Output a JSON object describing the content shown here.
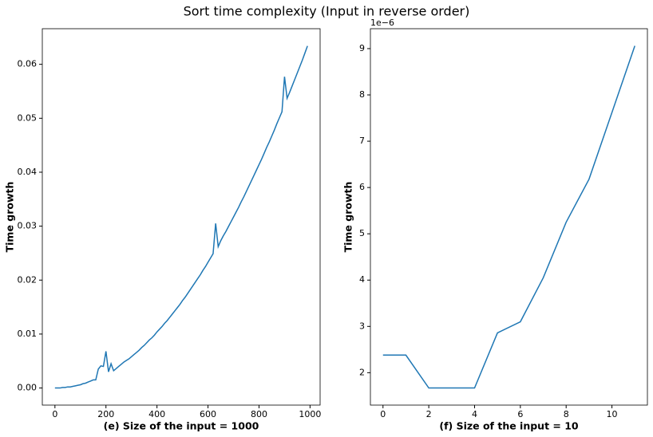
{
  "title": "Sort time complexity (Input in reverse order)",
  "chart_data": [
    {
      "type": "line",
      "xlabel": "(e) Size of the input = 1000",
      "ylabel": "Time growth",
      "color": "#1f77b4",
      "grid": false,
      "x": [
        0,
        10,
        20,
        30,
        40,
        50,
        60,
        70,
        80,
        90,
        100,
        110,
        120,
        130,
        140,
        150,
        160,
        170,
        180,
        190,
        200,
        210,
        220,
        230,
        240,
        250,
        260,
        270,
        280,
        290,
        300,
        310,
        320,
        330,
        340,
        350,
        360,
        370,
        380,
        390,
        400,
        410,
        420,
        430,
        440,
        450,
        460,
        470,
        480,
        490,
        500,
        510,
        520,
        530,
        540,
        550,
        560,
        570,
        580,
        590,
        600,
        610,
        620,
        630,
        640,
        650,
        660,
        670,
        680,
        690,
        700,
        710,
        720,
        730,
        740,
        750,
        760,
        770,
        780,
        790,
        800,
        810,
        820,
        830,
        840,
        850,
        860,
        870,
        880,
        890,
        900,
        910,
        920,
        930,
        940,
        950,
        960,
        970,
        980,
        990
      ],
      "values": [
        0,
        0,
        0,
        0.0001,
        0.0001,
        0.0002,
        0.0002,
        0.0003,
        0.0004,
        0.0005,
        0.0006,
        0.0008,
        0.0009,
        0.0011,
        0.0013,
        0.0015,
        0.0015,
        0.0035,
        0.0041,
        0.004,
        0.0068,
        0.003,
        0.0045,
        0.0032,
        0.0036,
        0.004,
        0.0044,
        0.0048,
        0.0051,
        0.0054,
        0.0058,
        0.0062,
        0.0066,
        0.007,
        0.0075,
        0.0079,
        0.0084,
        0.0089,
        0.0093,
        0.0098,
        0.0104,
        0.0109,
        0.0114,
        0.012,
        0.0125,
        0.0131,
        0.0137,
        0.0143,
        0.0149,
        0.0155,
        0.0162,
        0.0168,
        0.0175,
        0.0182,
        0.0189,
        0.0196,
        0.0203,
        0.021,
        0.0218,
        0.0225,
        0.0233,
        0.0241,
        0.0249,
        0.0305,
        0.0262,
        0.0273,
        0.0282,
        0.029,
        0.0299,
        0.0308,
        0.0317,
        0.0326,
        0.0335,
        0.0345,
        0.0354,
        0.0364,
        0.0374,
        0.0384,
        0.0394,
        0.0404,
        0.0414,
        0.0424,
        0.0435,
        0.0446,
        0.0456,
        0.0467,
        0.0478,
        0.049,
        0.0501,
        0.0512,
        0.0577,
        0.0537,
        0.0548,
        0.056,
        0.0572,
        0.0584,
        0.0596,
        0.0608,
        0.0621,
        0.0634
      ],
      "xlim": [
        -49.5,
        1039.5
      ],
      "xticks": [
        0,
        200,
        400,
        600,
        800,
        1000
      ],
      "ylim": [
        -0.00317,
        0.0666
      ],
      "yticks": [
        {
          "value": 0,
          "label": "0.00"
        },
        {
          "value": 0.01,
          "label": "0.01"
        },
        {
          "value": 0.02,
          "label": "0.02"
        },
        {
          "value": 0.03,
          "label": "0.03"
        },
        {
          "value": 0.04,
          "label": "0.04"
        },
        {
          "value": 0.05,
          "label": "0.05"
        },
        {
          "value": 0.06,
          "label": "0.06"
        }
      ]
    },
    {
      "type": "line",
      "xlabel": "(f) Size of the input = 10",
      "ylabel": "Time growth",
      "y_offset_label": "1e−6",
      "color": "#1f77b4",
      "grid": false,
      "x": [
        0,
        1,
        2,
        3,
        4,
        5,
        6,
        7,
        8,
        9,
        10,
        11
      ],
      "values": [
        2.38,
        2.38,
        1.67,
        1.67,
        1.67,
        2.86,
        3.1,
        4.05,
        5.25,
        6.18,
        7.62,
        9.06
      ],
      "xlim": [
        -0.55,
        11.55
      ],
      "xticks": [
        0,
        2,
        4,
        6,
        8,
        10
      ],
      "ylim": [
        1.3,
        9.43
      ],
      "yticks": [
        2,
        3,
        4,
        5,
        6,
        7,
        8,
        9
      ]
    }
  ]
}
